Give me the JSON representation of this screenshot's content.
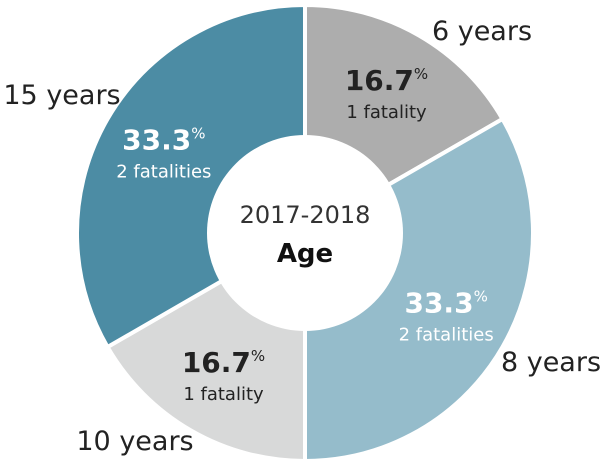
{
  "chart_data": {
    "type": "pie",
    "variant": "donut",
    "title": "Age",
    "subtitle": "2017-2018",
    "categories": [
      "6 years",
      "8 years",
      "10 years",
      "15 years"
    ],
    "values": [
      1,
      2,
      1,
      2
    ],
    "percent_labels": [
      "16.7",
      "33.3",
      "16.7",
      "33.3"
    ],
    "percent_symbol": "%",
    "detail_labels": [
      "1 fatality",
      "2 fatalities",
      "1 fatality",
      "2 fatalities"
    ],
    "colors": [
      "#adadad",
      "#95bccb",
      "#d8d9d9",
      "#4c8ca4"
    ],
    "value_text_colors": [
      "#222222",
      "#ffffff",
      "#222222",
      "#ffffff"
    ]
  }
}
